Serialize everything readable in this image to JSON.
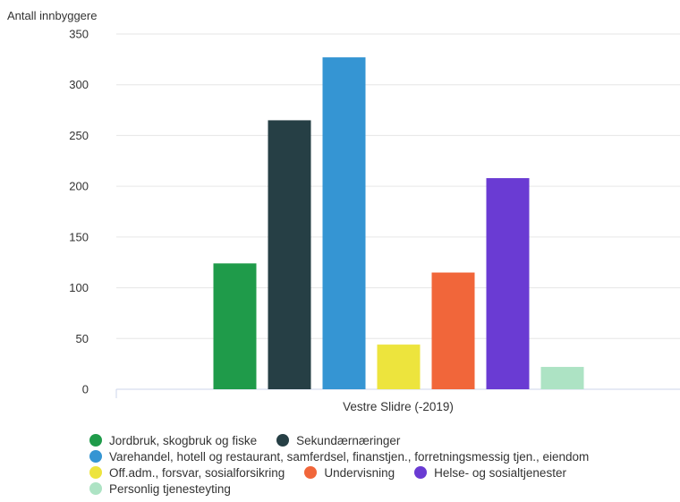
{
  "chart_data": {
    "type": "bar",
    "ylabel": "Antall innbyggere",
    "categories": [
      "Vestre Slidre (-2019)"
    ],
    "ylim": [
      0,
      350
    ],
    "yticks": [
      0,
      50,
      100,
      150,
      200,
      250,
      300,
      350
    ],
    "grid": true,
    "legend_position": "bottom",
    "series": [
      {
        "name": "Jordbruk, skogbruk og fiske",
        "color": "#1f9b4a",
        "values": [
          124
        ]
      },
      {
        "name": "Sekundærnæringer",
        "color": "#263f45",
        "values": [
          265
        ]
      },
      {
        "name": "Varehandel, hotell og restaurant, samferdsel, finanstjen., forretningsmessig tjen., eiendom",
        "color": "#3595d3",
        "values": [
          327
        ]
      },
      {
        "name": "Off.adm., forsvar, sosialforsikring",
        "color": "#ede43d",
        "values": [
          44
        ]
      },
      {
        "name": "Undervisning",
        "color": "#f1663a",
        "values": [
          115
        ]
      },
      {
        "name": "Helse- og sosialtjenester",
        "color": "#6a3bd3",
        "values": [
          208
        ]
      },
      {
        "name": "Personlig tjenesteyting",
        "color": "#ade3c4",
        "values": [
          22
        ]
      }
    ]
  }
}
